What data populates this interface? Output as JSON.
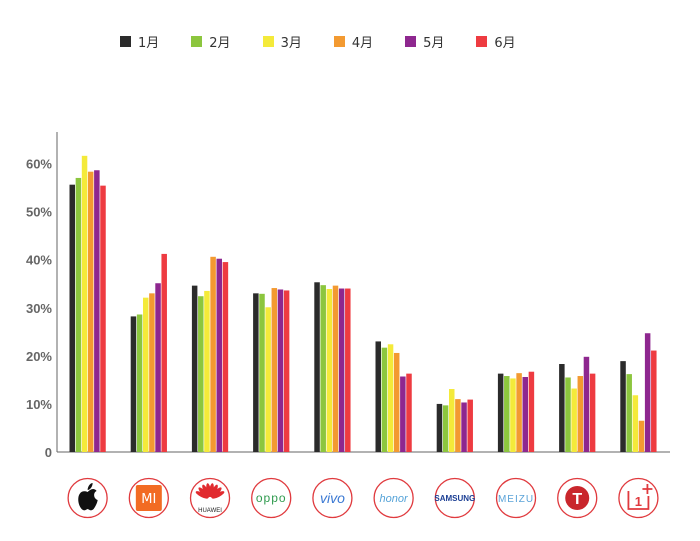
{
  "chart_data": {
    "type": "bar",
    "title": "",
    "xlabel": "",
    "ylabel": "",
    "ylim": [
      0,
      66
    ],
    "ytick_values": [
      0,
      10,
      20,
      30,
      40,
      50,
      60
    ],
    "ytick_labels": [
      "0",
      "10%",
      "20%",
      "30%",
      "40%",
      "50%",
      "60%"
    ],
    "categories": [
      "Apple",
      "MI",
      "HUAWEI",
      "OPPO",
      "vivo",
      "honor",
      "SAMSUNG",
      "MEIZU",
      "T",
      "1+"
    ],
    "category_icons": [
      "apple-icon",
      "mi-icon",
      "huawei-icon",
      "oppo-icon",
      "vivo-icon",
      "honor-icon",
      "samsung-icon",
      "meizu-icon",
      "smartisan-icon",
      "oneplus-icon"
    ],
    "legend_position": "top",
    "grid": false,
    "series": [
      {
        "name": "1月",
        "color": "#2b2b2b",
        "values": [
          55.6,
          28.2,
          34.6,
          33.0,
          35.3,
          23.0,
          10.0,
          16.3,
          18.3,
          18.9
        ]
      },
      {
        "name": "2月",
        "color": "#8cc63e",
        "values": [
          57.0,
          28.6,
          32.4,
          32.9,
          34.7,
          21.7,
          9.7,
          15.8,
          15.5,
          16.2
        ]
      },
      {
        "name": "3月",
        "color": "#f4ea3a",
        "values": [
          61.6,
          32.1,
          33.5,
          30.1,
          33.9,
          22.4,
          13.1,
          15.3,
          13.2,
          11.8
        ]
      },
      {
        "name": "4月",
        "color": "#f39a31",
        "values": [
          58.3,
          33.0,
          40.6,
          34.1,
          34.6,
          20.6,
          11.0,
          16.4,
          15.8,
          6.5
        ]
      },
      {
        "name": "5月",
        "color": "#8e278f",
        "values": [
          58.6,
          35.1,
          40.2,
          33.8,
          34.0,
          15.7,
          10.3,
          15.6,
          19.8,
          24.7
        ]
      },
      {
        "name": "6月",
        "color": "#ee3b41",
        "values": [
          55.4,
          41.2,
          39.5,
          33.6,
          34.0,
          16.3,
          10.9,
          16.7,
          16.3,
          21.1
        ]
      }
    ]
  }
}
